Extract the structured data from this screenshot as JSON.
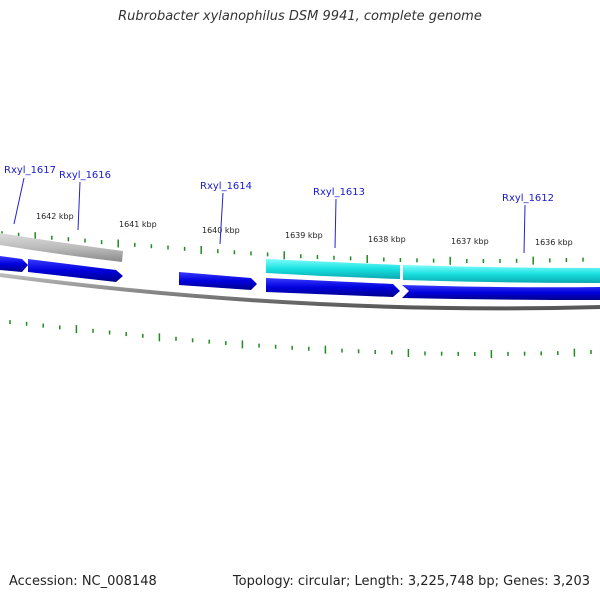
{
  "title": "Rubrobacter xylanophilus DSM 9941, complete genome",
  "footer": {
    "accession": "Accession: NC_008148",
    "summary": "Topology: circular; Length: 3,225,748 bp; Genes: 3,203"
  },
  "scale_labels": [
    "1642 kbp",
    "1641 kbp",
    "1640 kbp",
    "1639 kbp",
    "1638 kbp",
    "1637 kbp",
    "1636 kbp"
  ],
  "gene_labels": [
    "Rxyl_1617",
    "Rxyl_1616",
    "Rxyl_1614",
    "Rxyl_1613",
    "Rxyl_1612"
  ],
  "colors": {
    "forward_cds": "#0000dd",
    "rna_feature": "#00d8d8",
    "pseudo_feature": "#b8b8b8",
    "backbone": "#888888",
    "tick": "#1e8c1e",
    "gene_label": "#1a1acc"
  }
}
